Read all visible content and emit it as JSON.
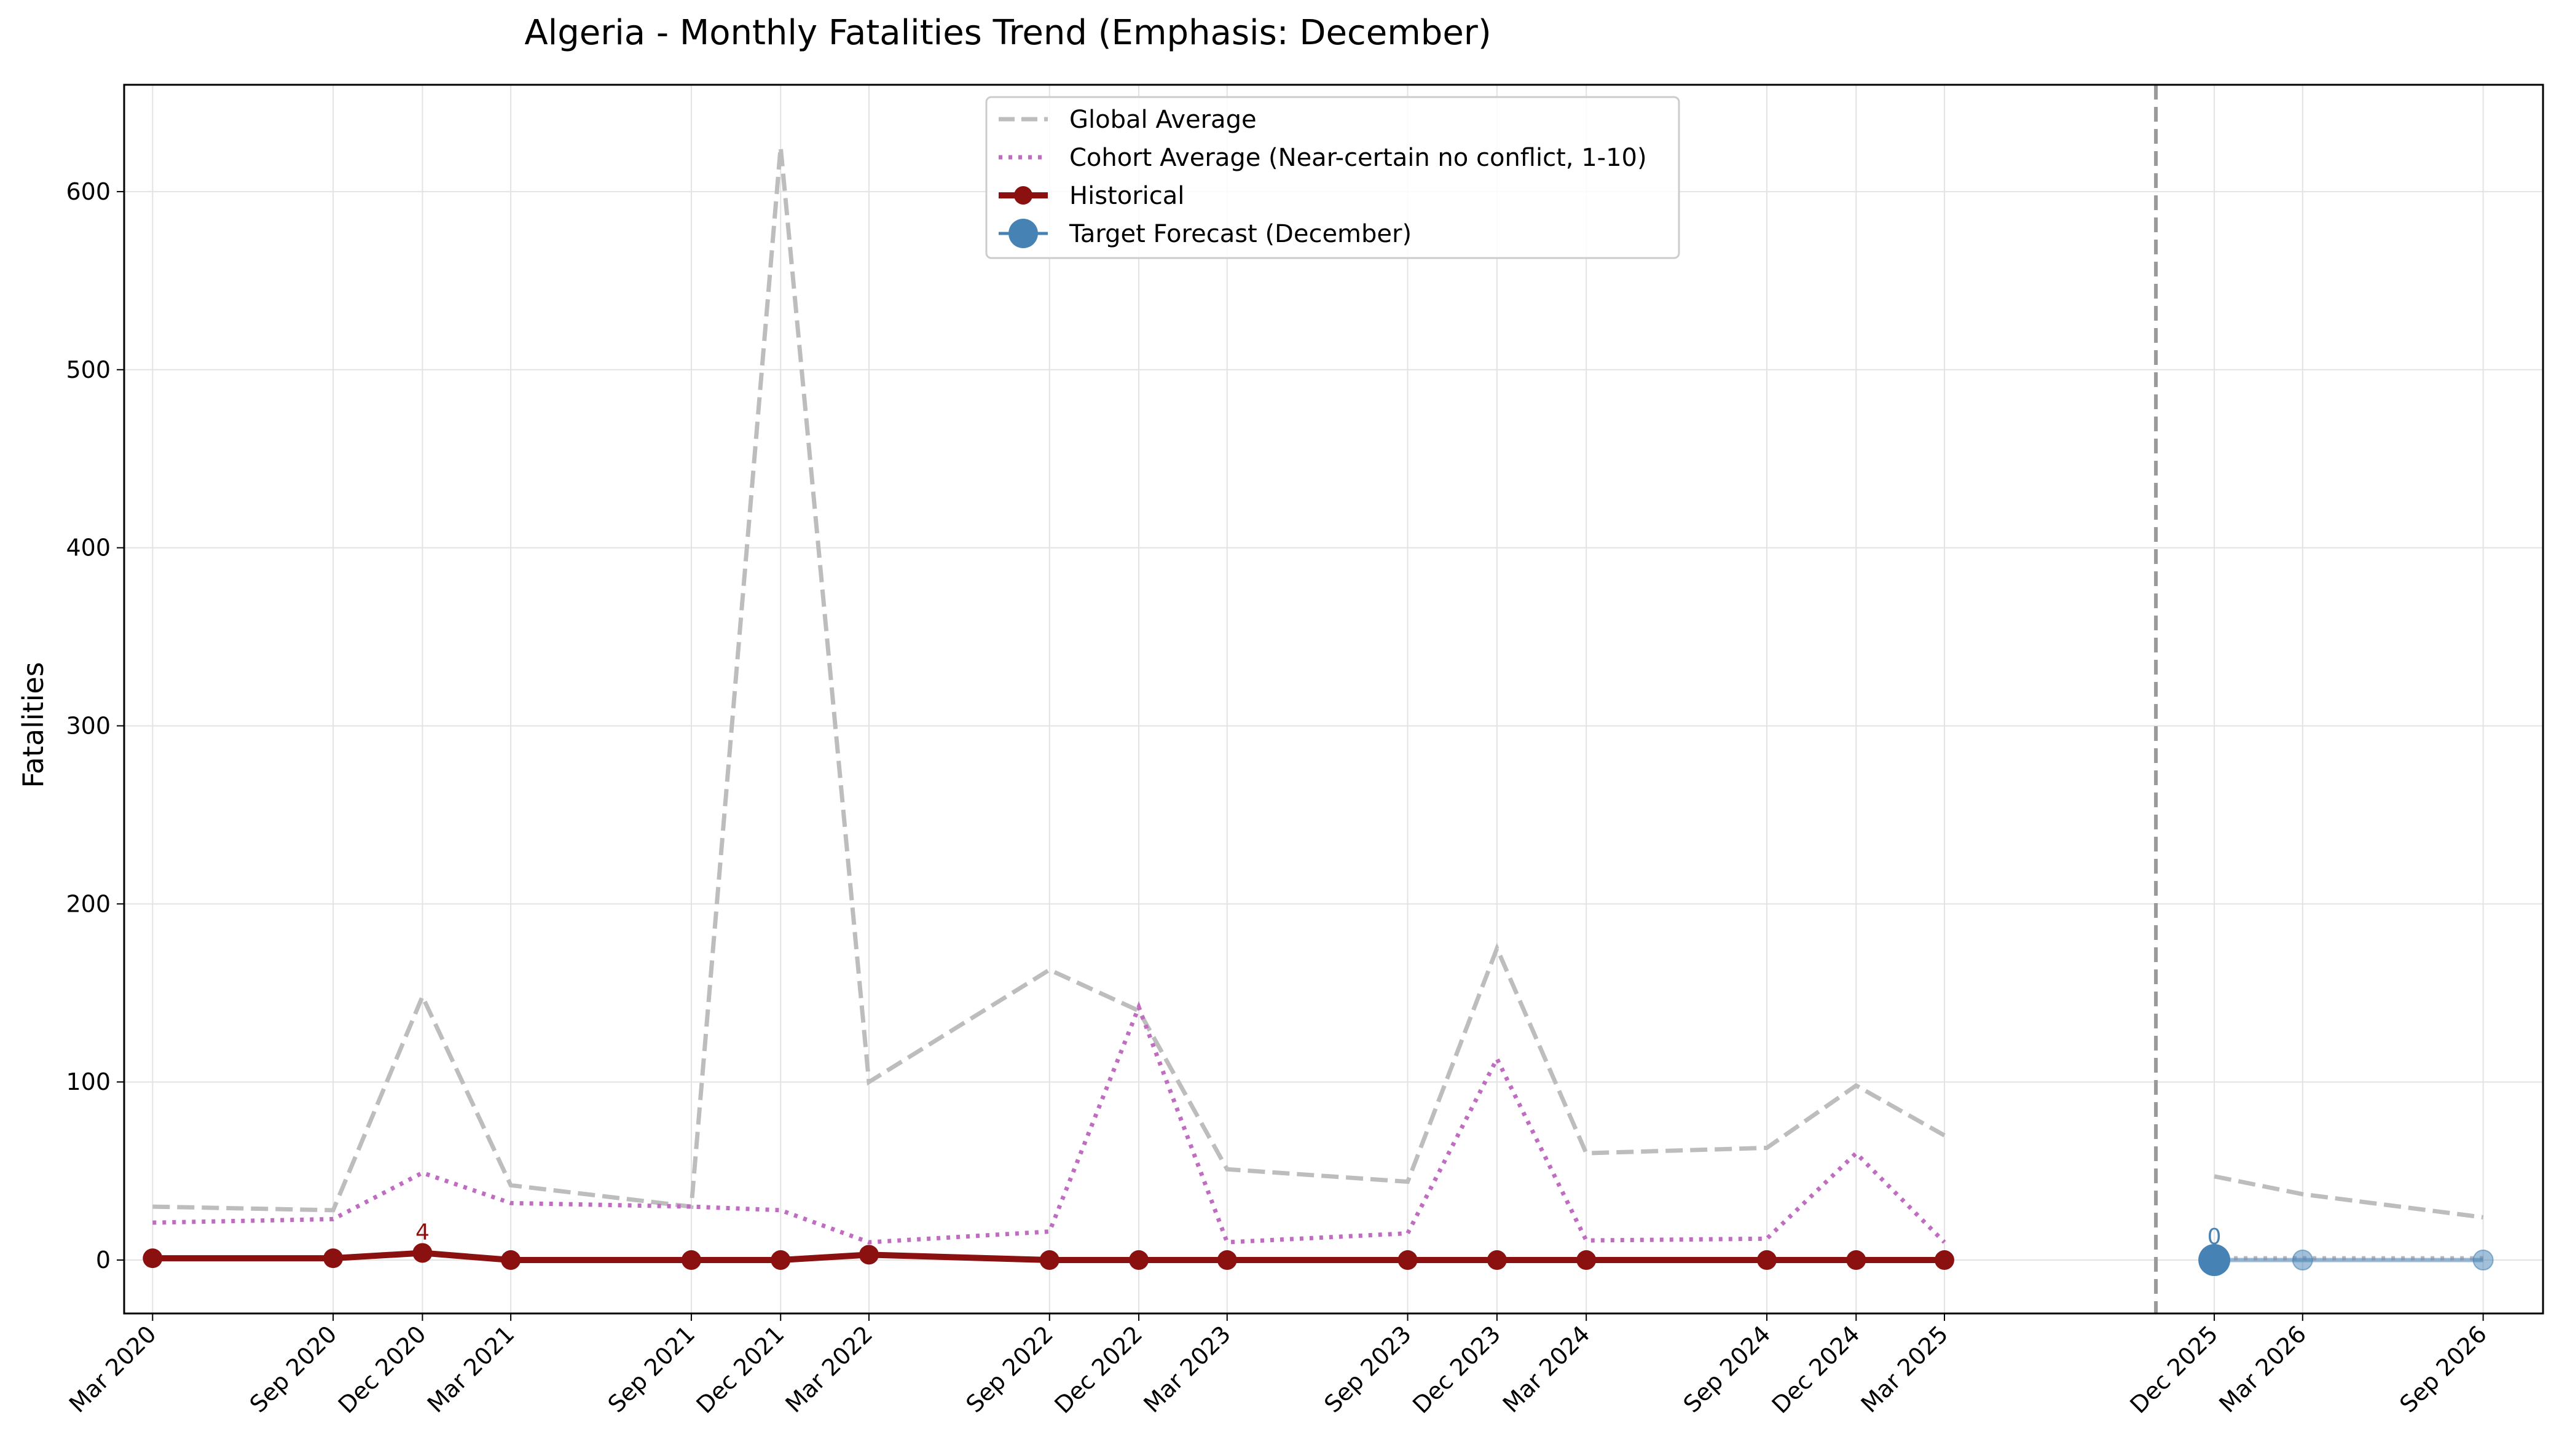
{
  "chart_data": {
    "type": "line",
    "title": "Algeria - Monthly Fatalities Trend (Emphasis: December)",
    "xlabel": "",
    "ylabel": "Fatalities",
    "ylim": [
      -30,
      660
    ],
    "yticks": [
      0,
      100,
      200,
      300,
      400,
      500,
      600
    ],
    "grid": true,
    "legend_position": "top-center",
    "divider_date": "2025-12",
    "xticks": [
      {
        "date": "2020-03",
        "label": "Mar 2020"
      },
      {
        "date": "2020-09",
        "label": "Sep 2020"
      },
      {
        "date": "2020-12",
        "label": "Dec 2020"
      },
      {
        "date": "2021-03",
        "label": "Mar 2021"
      },
      {
        "date": "2021-09",
        "label": "Sep 2021"
      },
      {
        "date": "2021-12",
        "label": "Dec 2021"
      },
      {
        "date": "2022-03",
        "label": "Mar 2022"
      },
      {
        "date": "2022-09",
        "label": "Sep 2022"
      },
      {
        "date": "2022-12",
        "label": "Dec 2022"
      },
      {
        "date": "2023-03",
        "label": "Mar 2023"
      },
      {
        "date": "2023-09",
        "label": "Sep 2023"
      },
      {
        "date": "2023-12",
        "label": "Dec 2023"
      },
      {
        "date": "2024-03",
        "label": "Mar 2024"
      },
      {
        "date": "2024-09",
        "label": "Sep 2024"
      },
      {
        "date": "2024-12",
        "label": "Dec 2024"
      },
      {
        "date": "2025-03",
        "label": "Mar 2025"
      },
      {
        "date": "2025-12",
        "label": "Dec 2025"
      },
      {
        "date": "2026-03",
        "label": "Mar 2026"
      },
      {
        "date": "2026-09",
        "label": "Sep 2026"
      }
    ],
    "series": [
      {
        "name": "Global Average",
        "color": "#bdbdbd",
        "style": "dashed",
        "points": [
          {
            "x": "2020-03",
            "y": 30
          },
          {
            "x": "2020-09",
            "y": 28
          },
          {
            "x": "2020-12",
            "y": 148
          },
          {
            "x": "2021-03",
            "y": 42
          },
          {
            "x": "2021-09",
            "y": 30
          },
          {
            "x": "2021-12",
            "y": 625
          },
          {
            "x": "2022-03",
            "y": 100
          },
          {
            "x": "2022-09",
            "y": 163
          },
          {
            "x": "2022-12",
            "y": 140
          },
          {
            "x": "2023-03",
            "y": 51
          },
          {
            "x": "2023-09",
            "y": 44
          },
          {
            "x": "2023-12",
            "y": 175
          },
          {
            "x": "2024-03",
            "y": 60
          },
          {
            "x": "2024-09",
            "y": 63
          },
          {
            "x": "2024-12",
            "y": 98
          },
          {
            "x": "2025-03",
            "y": 70
          }
        ],
        "forecast_points": [
          {
            "x": "2025-12",
            "y": 47
          },
          {
            "x": "2026-03",
            "y": 37
          },
          {
            "x": "2026-09",
            "y": 24
          }
        ]
      },
      {
        "name": "Cohort Average (Near-certain no conflict, 1-10)",
        "color": "#c06cc0",
        "style": "dotted",
        "points": [
          {
            "x": "2020-03",
            "y": 21
          },
          {
            "x": "2020-09",
            "y": 23
          },
          {
            "x": "2020-12",
            "y": 49
          },
          {
            "x": "2021-03",
            "y": 32
          },
          {
            "x": "2021-09",
            "y": 30
          },
          {
            "x": "2021-12",
            "y": 28
          },
          {
            "x": "2022-03",
            "y": 10
          },
          {
            "x": "2022-09",
            "y": 16
          },
          {
            "x": "2022-12",
            "y": 142
          },
          {
            "x": "2023-03",
            "y": 10
          },
          {
            "x": "2023-09",
            "y": 15
          },
          {
            "x": "2023-12",
            "y": 113
          },
          {
            "x": "2024-03",
            "y": 11
          },
          {
            "x": "2024-09",
            "y": 12
          },
          {
            "x": "2024-12",
            "y": 60
          },
          {
            "x": "2025-03",
            "y": 10
          }
        ],
        "forecast_points": [
          {
            "x": "2025-12",
            "y": 1
          },
          {
            "x": "2026-03",
            "y": 1
          },
          {
            "x": "2026-09",
            "y": 1
          }
        ]
      },
      {
        "name": "Historical",
        "color": "#8b1010",
        "style": "solid-marker",
        "points": [
          {
            "x": "2020-03",
            "y": 1
          },
          {
            "x": "2020-09",
            "y": 1
          },
          {
            "x": "2020-12",
            "y": 4
          },
          {
            "x": "2021-03",
            "y": 0
          },
          {
            "x": "2021-09",
            "y": 0
          },
          {
            "x": "2021-12",
            "y": 0
          },
          {
            "x": "2022-03",
            "y": 3
          },
          {
            "x": "2022-09",
            "y": 0
          },
          {
            "x": "2022-12",
            "y": 0
          },
          {
            "x": "2023-03",
            "y": 0
          },
          {
            "x": "2023-09",
            "y": 0
          },
          {
            "x": "2023-12",
            "y": 0
          },
          {
            "x": "2024-03",
            "y": 0
          },
          {
            "x": "2024-09",
            "y": 0
          },
          {
            "x": "2024-12",
            "y": 0
          },
          {
            "x": "2025-03",
            "y": 0
          }
        ],
        "annotations": [
          {
            "x": "2020-12",
            "y": 4,
            "text": "4"
          }
        ]
      },
      {
        "name": "Target Forecast (December)",
        "color": "#4682b4",
        "style": "marker",
        "points": [
          {
            "x": "2025-12",
            "y": 0
          }
        ],
        "annotations": [
          {
            "x": "2025-12",
            "y": 0,
            "text": "0"
          }
        ],
        "secondary_points": [
          {
            "x": "2026-03",
            "y": 0
          },
          {
            "x": "2026-09",
            "y": 0
          }
        ]
      }
    ]
  }
}
